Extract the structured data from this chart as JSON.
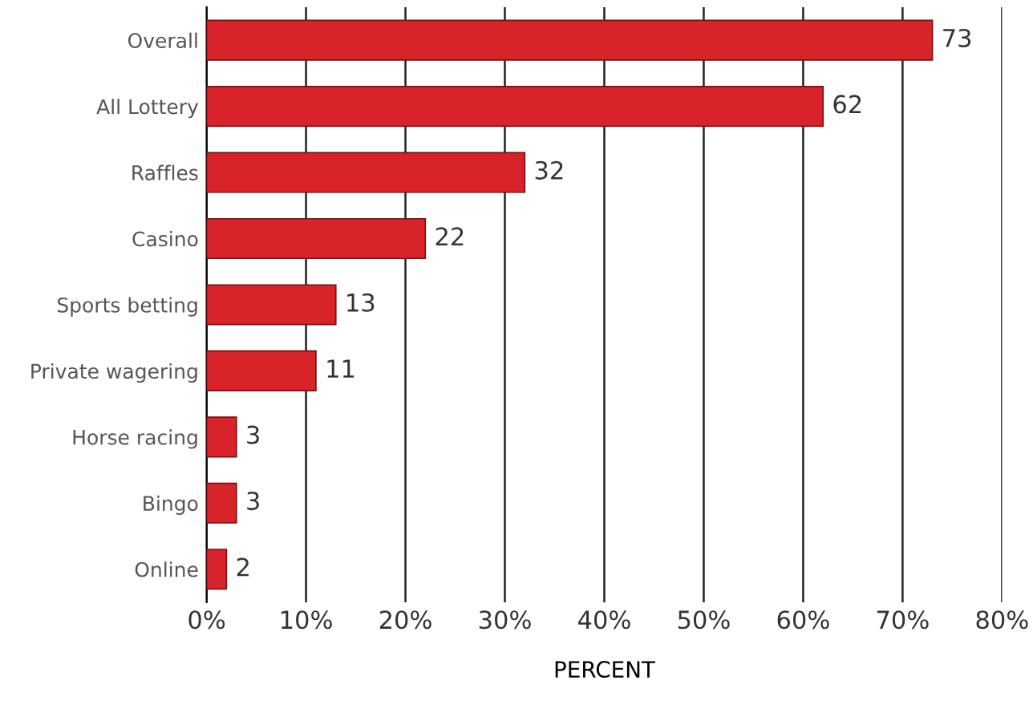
{
  "chart_data": {
    "type": "bar",
    "orientation": "horizontal",
    "xlabel": "PERCENT",
    "categories": [
      "Overall",
      "All Lottery",
      "Raffles",
      "Casino",
      "Sports betting",
      "Private wagering",
      "Horse racing",
      "Bingo",
      "Online"
    ],
    "values": [
      73,
      62,
      32,
      22,
      13,
      11,
      3,
      3,
      2
    ],
    "color": "#d8232a",
    "xlim": [
      0,
      80
    ],
    "xticks": [
      {
        "value": 0,
        "label": "0%"
      },
      {
        "value": 10,
        "label": "10%"
      },
      {
        "value": 20,
        "label": "20%"
      },
      {
        "value": 30,
        "label": "30%"
      },
      {
        "value": 40,
        "label": "40%"
      },
      {
        "value": 50,
        "label": "50%"
      },
      {
        "value": 60,
        "label": "60%"
      },
      {
        "value": 70,
        "label": "70%"
      },
      {
        "value": 80,
        "label": "80%"
      }
    ],
    "grid": "x",
    "data_labels": true
  }
}
